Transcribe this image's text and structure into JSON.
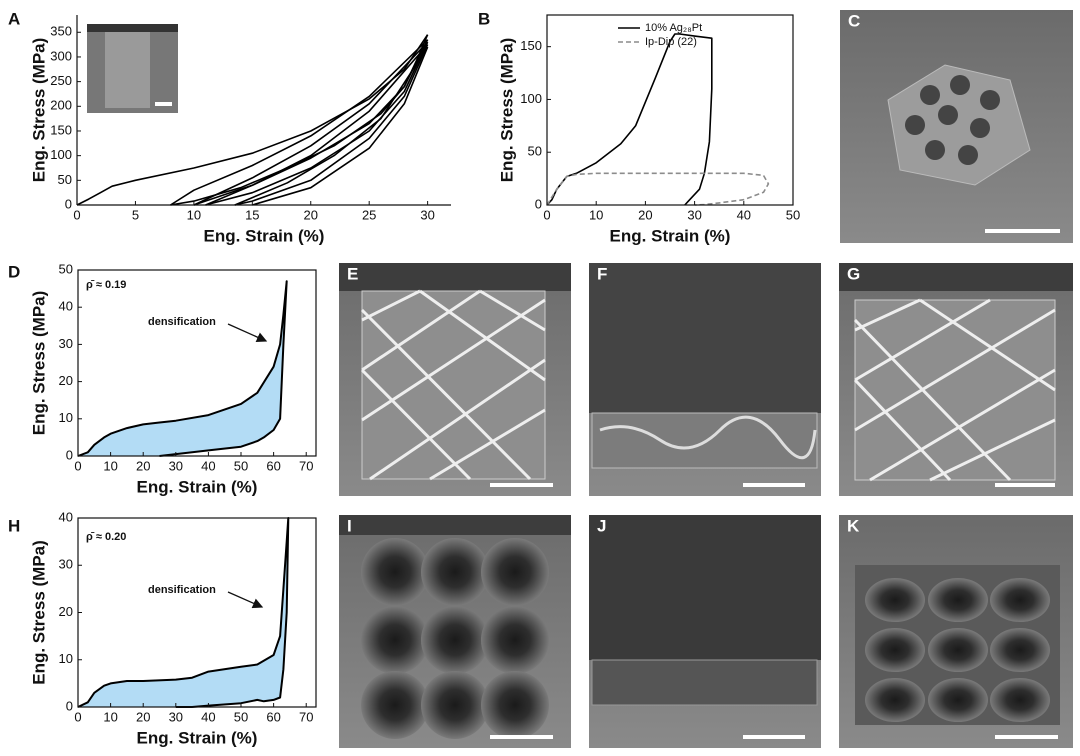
{
  "panel_labels": [
    "A",
    "B",
    "C",
    "D",
    "E",
    "F",
    "G",
    "H",
    "I",
    "J",
    "K"
  ],
  "chart_data": [
    {
      "type": "line",
      "xlabel": "Eng. Strain (%)",
      "ylabel": "Eng. Stress (MPa)",
      "xlim": [
        0,
        32
      ],
      "ylim": [
        0,
        385
      ],
      "xticks": [
        0,
        5,
        10,
        15,
        20,
        25,
        30
      ],
      "yticks": [
        0,
        50,
        100,
        150,
        200,
        250,
        300,
        350
      ],
      "series": [
        {
          "color": "#000000",
          "x": [
            0,
            1,
            2,
            3,
            5,
            10,
            15,
            20,
            25,
            28,
            30
          ],
          "values": [
            0,
            12,
            25,
            38,
            50,
            75,
            105,
            150,
            215,
            275,
            345
          ]
        },
        {
          "color": "#000000",
          "x": [
            30,
            29,
            28,
            26,
            22,
            18,
            14,
            10,
            8
          ],
          "values": [
            345,
            290,
            240,
            185,
            120,
            75,
            35,
            8,
            0
          ]
        },
        {
          "color": "#000000",
          "x": [
            8,
            10,
            15,
            20,
            25,
            30
          ],
          "values": [
            0,
            30,
            80,
            140,
            220,
            335
          ]
        },
        {
          "color": "#000000",
          "x": [
            30,
            28,
            25,
            20,
            15,
            10
          ],
          "values": [
            335,
            240,
            165,
            95,
            40,
            0
          ]
        },
        {
          "color": "#000000",
          "x": [
            10,
            15,
            20,
            25,
            30
          ],
          "values": [
            0,
            55,
            120,
            205,
            330
          ]
        },
        {
          "color": "#000000",
          "x": [
            30,
            28,
            25,
            20,
            15,
            11
          ],
          "values": [
            330,
            230,
            150,
            75,
            25,
            0
          ]
        },
        {
          "color": "#000000",
          "x": [
            11,
            15,
            20,
            25,
            30
          ],
          "values": [
            0,
            40,
            100,
            190,
            325
          ]
        },
        {
          "color": "#000000",
          "x": [
            30,
            28,
            25,
            20,
            15,
            13.5
          ],
          "values": [
            325,
            220,
            135,
            50,
            8,
            0
          ]
        },
        {
          "color": "#000000",
          "x": [
            13.5,
            18,
            22,
            26,
            30
          ],
          "values": [
            0,
            45,
            100,
            175,
            320
          ]
        },
        {
          "color": "#000000",
          "x": [
            30,
            28,
            25,
            20,
            15
          ],
          "values": [
            320,
            205,
            115,
            35,
            0
          ]
        }
      ]
    },
    {
      "type": "line",
      "xlabel": "Eng. Strain (%)",
      "ylabel": "Eng. Stress (MPa)",
      "xlim": [
        0,
        50
      ],
      "ylim": [
        0,
        180
      ],
      "xticks": [
        0,
        10,
        20,
        30,
        40,
        50
      ],
      "yticks": [
        0,
        50,
        100,
        150
      ],
      "legend": "upper right",
      "series": [
        {
          "name": "10% Ag₂₈Pt",
          "color": "#000000",
          "dashed": false,
          "x": [
            0,
            1,
            2,
            4,
            6,
            10,
            15,
            18,
            22,
            25,
            26,
            27,
            30,
            33.5,
            33.5,
            33,
            32,
            31,
            29,
            28
          ],
          "values": [
            0,
            5,
            15,
            27,
            30,
            40,
            58,
            75,
            120,
            155,
            162,
            162,
            160,
            158,
            110,
            60,
            30,
            15,
            5,
            0
          ]
        },
        {
          "name": "Ip-Dip (22)",
          "color": "#8c8c8c",
          "dashed": true,
          "x": [
            0,
            2,
            4,
            6,
            10,
            20,
            30,
            40,
            44,
            45,
            44,
            40,
            35,
            32,
            30
          ],
          "values": [
            0,
            15,
            27,
            29,
            30,
            30,
            30,
            30,
            28,
            20,
            12,
            5,
            2,
            0.5,
            0
          ]
        }
      ]
    },
    {
      "type": "area",
      "xlabel": "Eng. Strain (%)",
      "ylabel": "Eng. Stress (MPa)",
      "annotations": [
        "ρ̄ ≈ 0.19",
        "densification"
      ],
      "xlim": [
        0,
        73
      ],
      "ylim": [
        0,
        50
      ],
      "xticks": [
        0,
        10,
        20,
        30,
        40,
        50,
        60,
        70
      ],
      "yticks": [
        0,
        10,
        20,
        30,
        40,
        50
      ],
      "fill": "#b3dcf5",
      "series": [
        {
          "color": "#000000",
          "x": [
            0,
            3,
            5,
            8,
            10,
            15,
            20,
            25,
            30,
            40,
            50,
            55,
            60,
            62,
            63,
            64,
            63,
            62,
            60,
            57,
            55,
            50,
            40,
            30,
            25
          ],
          "values": [
            0,
            1,
            3,
            5,
            6,
            7.5,
            8.5,
            9,
            9.5,
            11,
            14,
            17,
            24,
            30,
            38,
            47,
            30,
            10,
            7,
            5,
            4,
            2.5,
            1.5,
            0.5,
            0
          ]
        }
      ]
    },
    {
      "type": "area",
      "xlabel": "Eng. Strain (%)",
      "ylabel": "Eng. Stress (MPa)",
      "annotations": [
        "ρ̄ ≈ 0.20",
        "densification"
      ],
      "xlim": [
        0,
        73
      ],
      "ylim": [
        0,
        40
      ],
      "xticks": [
        0,
        10,
        20,
        30,
        40,
        50,
        60,
        70
      ],
      "yticks": [
        0,
        10,
        20,
        30,
        40
      ],
      "fill": "#b3dcf5",
      "series": [
        {
          "color": "#000000",
          "x": [
            0,
            3,
            5,
            8,
            10,
            15,
            20,
            30,
            35,
            40,
            50,
            55,
            60,
            62,
            63,
            64,
            64.5,
            64,
            63,
            62,
            60,
            57,
            55,
            50,
            40,
            35,
            30
          ],
          "values": [
            0,
            1,
            3,
            4.5,
            5,
            5.5,
            5.5,
            5.8,
            6.2,
            7.5,
            8.5,
            9,
            11,
            15,
            25,
            35,
            40,
            20,
            8,
            2,
            1.5,
            1.2,
            1.5,
            0.8,
            0.3,
            0,
            0
          ]
        }
      ]
    }
  ]
}
